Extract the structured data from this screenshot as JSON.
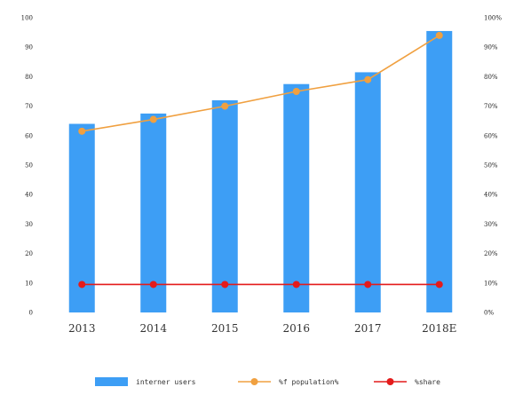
{
  "chart_data": {
    "type": "bar",
    "categories": [
      "2013",
      "2014",
      "2015",
      "2016",
      "2017",
      "2018E"
    ],
    "title": "",
    "xlabel": "",
    "ylabel": "",
    "ylim": [
      0,
      100
    ],
    "y2lim": [
      0,
      100
    ],
    "y_ticks": [
      "0",
      "10",
      "20",
      "30",
      "40",
      "50",
      "60",
      "70",
      "80",
      "90",
      "100"
    ],
    "y2_ticks": [
      "0%",
      "10%",
      "20%",
      "30%",
      "40%",
      "50%",
      "60%",
      "70%",
      "80%",
      "90%",
      "100%"
    ],
    "grid": false,
    "legend_position": "bottom",
    "series": [
      {
        "name": "interner users",
        "kind": "bar",
        "axis": "left",
        "color": "#3d9ef5",
        "values": [
          64,
          67.5,
          72,
          77.5,
          81.5,
          95.5
        ]
      },
      {
        "name": "%f population%",
        "kind": "line",
        "axis": "right",
        "color": "#f0a040",
        "values": [
          61.5,
          65.5,
          70,
          75,
          79,
          94
        ]
      },
      {
        "name": "%share",
        "kind": "line",
        "axis": "right",
        "color": "#e41b1b",
        "values": [
          9.5,
          9.5,
          9.5,
          9.5,
          9.5,
          9.5
        ]
      }
    ]
  }
}
